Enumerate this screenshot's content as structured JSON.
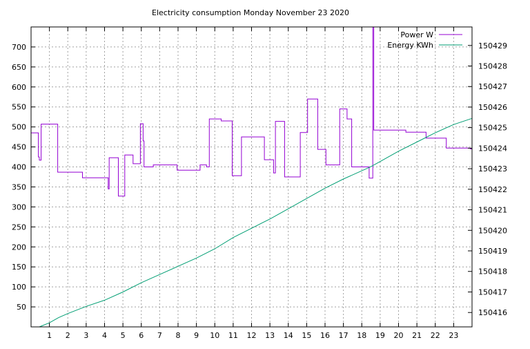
{
  "chart_data": {
    "type": "line",
    "title": "Electricity consumption Monday November 23 2020",
    "xlim": [
      0,
      24
    ],
    "x_ticks": [
      "1",
      "2",
      "3",
      "4",
      "5",
      "6",
      "7",
      "8",
      "9",
      "10",
      "11",
      "12",
      "13",
      "14",
      "15",
      "16",
      "17",
      "18",
      "19",
      "20",
      "21",
      "22",
      "23"
    ],
    "ylim": [
      0,
      750
    ],
    "y_ticks": [
      "50",
      "100",
      "150",
      "200",
      "250",
      "300",
      "350",
      "400",
      "450",
      "500",
      "550",
      "600",
      "650",
      "700"
    ],
    "y2lim": [
      150415.3,
      150429.9
    ],
    "y2_ticks": [
      "150416",
      "150417",
      "150418",
      "150419",
      "150420",
      "150421",
      "150422",
      "150423",
      "150424",
      "150425",
      "150426",
      "150427",
      "150428",
      "150429"
    ],
    "grid": true,
    "legend_position": "top-right",
    "series": [
      {
        "name": "Power W",
        "axis": "left",
        "color": "#9400d3",
        "step": true,
        "x": [
          0,
          0.4,
          0.45,
          0.55,
          1.45,
          2.8,
          4.2,
          4.25,
          4.75,
          5.1,
          5.55,
          5.95,
          6.1,
          6.15,
          6.65,
          7.95,
          9.2,
          9.55,
          9.7,
          10.35,
          10.95,
          11.45,
          12.7,
          13.2,
          13.3,
          13.8,
          14.65,
          15.05,
          15.6,
          16.05,
          16.8,
          17.2,
          17.45,
          18.4,
          18.6,
          18.65,
          19.4,
          20.4,
          21.5,
          22.6,
          23.9,
          24
        ],
        "y": [
          485,
          425,
          417,
          507,
          387,
          373,
          345,
          423,
          327,
          430,
          408,
          508,
          465,
          400,
          405,
          392,
          405,
          400,
          520,
          515,
          378,
          475,
          418,
          385,
          514,
          375,
          486,
          570,
          444,
          405,
          545,
          520,
          400,
          372,
          755,
          492,
          492,
          487,
          472,
          447,
          445,
          405
        ]
      },
      {
        "name": "Energy KWh",
        "axis": "right",
        "color": "#009e73",
        "step": false,
        "x": [
          0.45,
          1,
          1.5,
          2,
          3,
          4,
          5,
          6,
          7,
          8,
          9,
          10,
          11,
          12,
          13,
          14,
          15,
          16,
          17,
          18,
          18.5,
          19,
          20,
          21,
          22,
          23,
          24
        ],
        "y": [
          150415.3,
          150415.5,
          150415.75,
          150415.95,
          150416.3,
          150416.6,
          150417.0,
          150417.45,
          150417.85,
          150418.25,
          150418.65,
          150419.1,
          150419.65,
          150420.1,
          150420.55,
          150421.05,
          150421.55,
          150422.05,
          150422.5,
          150422.9,
          150423.1,
          150423.35,
          150423.85,
          150424.3,
          150424.75,
          150425.15,
          150425.45
        ]
      }
    ]
  }
}
